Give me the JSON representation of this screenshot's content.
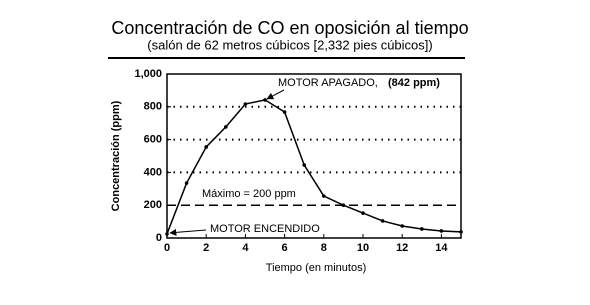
{
  "chart_data": {
    "type": "line",
    "title": "Concentración de CO en oposición al tiempo",
    "subtitle": "(salón de 62 metros cúbicos [2,332 pies cúbicos])",
    "x_label": "Tiempo (en minutos)",
    "y_label": "Concentración (ppm)",
    "x": [
      0,
      1,
      2,
      3,
      4,
      5,
      6,
      7,
      8,
      9,
      10,
      11,
      12,
      13,
      14,
      15
    ],
    "series": [
      {
        "name": "CO",
        "color": "#000000",
        "values": [
          25,
          335,
          555,
          677,
          817,
          842,
          768,
          445,
          256,
          200,
          152,
          104,
          73,
          55,
          43,
          37
        ]
      }
    ],
    "xlim": [
      0,
      15
    ],
    "xticks": [
      0,
      2,
      4,
      6,
      8,
      10,
      12,
      14
    ],
    "ylim": [
      0,
      1000
    ],
    "yticks": [
      0,
      200,
      400,
      600,
      800,
      {
        "value": 1000,
        "label": "1,000"
      }
    ],
    "grid": true,
    "threshold": 200,
    "threshold_label": "Máximo = 200 ppm",
    "annotation_off": "MOTOR APAGADO,",
    "annotation_off_value": "(842 ppm)",
    "annotation_on": "MOTOR ENCENDIDO"
  }
}
